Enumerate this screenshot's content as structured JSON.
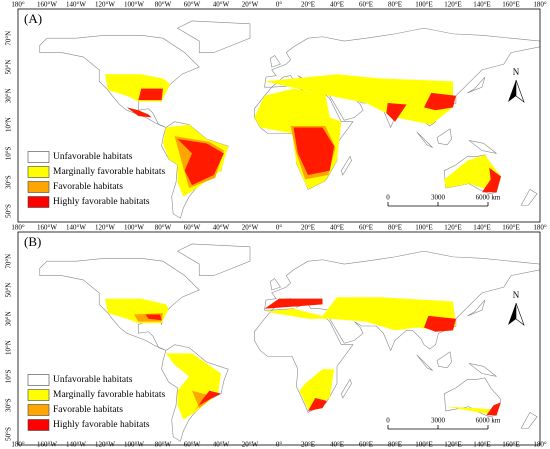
{
  "panels": [
    {
      "label": "(A)"
    },
    {
      "label": "(B)"
    }
  ],
  "lon_labels": [
    {
      "value": -180,
      "label": "180°"
    },
    {
      "value": -160,
      "label": "160°W"
    },
    {
      "value": -140,
      "label": "140°W"
    },
    {
      "value": -120,
      "label": "120°W"
    },
    {
      "value": -100,
      "label": "100°W"
    },
    {
      "value": -80,
      "label": "80°W"
    },
    {
      "value": -60,
      "label": "60°W"
    },
    {
      "value": -40,
      "label": "40°W"
    },
    {
      "value": -20,
      "label": "20°W"
    },
    {
      "value": 0,
      "label": "0°"
    },
    {
      "value": 20,
      "label": "20°E"
    },
    {
      "value": 40,
      "label": "40°E"
    },
    {
      "value": 60,
      "label": "60°E"
    },
    {
      "value": 80,
      "label": "80°E"
    },
    {
      "value": 100,
      "label": "100°E"
    },
    {
      "value": 120,
      "label": "120°E"
    },
    {
      "value": 140,
      "label": "140°E"
    },
    {
      "value": 160,
      "label": "160°E"
    },
    {
      "value": 180,
      "label": "180°"
    }
  ],
  "lat_labels": [
    {
      "value": 70,
      "label": "70°N"
    },
    {
      "value": 50,
      "label": "50°N"
    },
    {
      "value": 30,
      "label": "30°N"
    },
    {
      "value": 10,
      "label": "10°N"
    },
    {
      "value": -10,
      "label": "10°S"
    },
    {
      "value": -30,
      "label": "30°S"
    },
    {
      "value": -50,
      "label": "50°S"
    }
  ],
  "legend": [
    {
      "label": "Unfavorable habitats",
      "color": "#ffffff"
    },
    {
      "label": "Marginally favorable habitats",
      "color": "#ffff00"
    },
    {
      "label": "Favorable habitats",
      "color": "#ffa500"
    },
    {
      "label": "Highly favorable habitats",
      "color": "#ff0000"
    }
  ],
  "scale": [
    {
      "value": 0,
      "label": "0"
    },
    {
      "value": 3000,
      "label": "3000"
    },
    {
      "value": 6000,
      "label": "6000 km"
    }
  ],
  "north": "N"
}
